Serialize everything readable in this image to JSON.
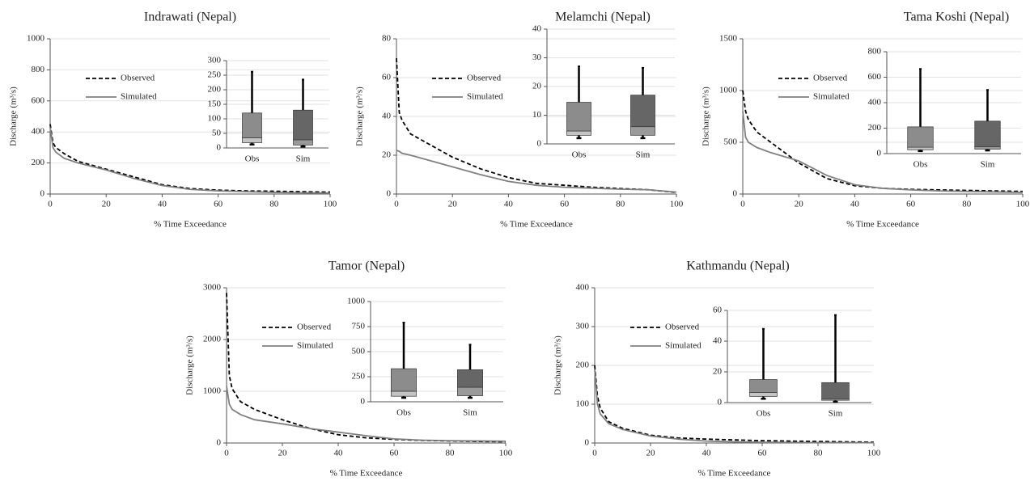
{
  "chart_data": [
    {
      "type": "line",
      "title": "Indrawati (Nepal)",
      "x_label": "% Time Exceedance",
      "y_label": "Discharge (m³/s)",
      "x": [
        0,
        1,
        2,
        5,
        10,
        20,
        30,
        40,
        50,
        60,
        70,
        80,
        90,
        100
      ],
      "xlim": [
        0,
        100
      ],
      "xticks": [
        0,
        20,
        40,
        60,
        80,
        100
      ],
      "ylim": [
        0,
        1000
      ],
      "yticks": [
        0,
        200,
        400,
        600,
        800,
        1000
      ],
      "grid": true,
      "series": [
        {
          "name": "Observed",
          "color": "#000000",
          "dashed": true,
          "values": [
            450,
            330,
            300,
            260,
            210,
            160,
            110,
            60,
            35,
            25,
            20,
            18,
            15,
            12
          ]
        },
        {
          "name": "Simulated",
          "color": "#808080",
          "dashed": false,
          "values": [
            430,
            300,
            270,
            230,
            200,
            155,
            100,
            55,
            30,
            20,
            15,
            10,
            8,
            6
          ]
        }
      ],
      "inset": {
        "type": "box",
        "categories": [
          "Obs",
          "Sim"
        ],
        "ylim": [
          0,
          300
        ],
        "yticks": [
          0,
          50,
          100,
          150,
          200,
          250,
          300
        ],
        "grid": true,
        "boxes": [
          {
            "min": 12,
            "q1": 18,
            "median": 35,
            "q3": 120,
            "max": 262,
            "color": "#8c8c8c",
            "lower_color": "#c4c4c4"
          },
          {
            "min": 5,
            "q1": 10,
            "median": 28,
            "q3": 130,
            "max": 235,
            "color": "#666666",
            "lower_color": "#9a9a9a"
          }
        ]
      }
    },
    {
      "type": "line",
      "title": "Melamchi (Nepal)",
      "x_label": "% Time Exceedance",
      "y_label": "Discharge (m³/s)",
      "x": [
        0,
        1,
        2,
        5,
        10,
        20,
        30,
        40,
        50,
        60,
        70,
        80,
        90,
        100
      ],
      "xlim": [
        0,
        100
      ],
      "xticks": [
        0,
        20,
        40,
        60,
        80,
        100
      ],
      "ylim": [
        0,
        80
      ],
      "yticks": [
        0,
        20,
        40,
        60,
        80
      ],
      "grid": true,
      "series": [
        {
          "name": "Observed",
          "color": "#000000",
          "dashed": true,
          "values": [
            70,
            42,
            38,
            31,
            27,
            19,
            13,
            8.5,
            5.5,
            4.5,
            3.5,
            2.8,
            2.2,
            0.8
          ]
        },
        {
          "name": "Simulated",
          "color": "#808080",
          "dashed": false,
          "values": [
            22.5,
            22,
            21,
            20,
            18,
            14,
            10,
            6.5,
            4.5,
            3.5,
            3,
            2.5,
            2.2,
            1
          ]
        }
      ],
      "inset": {
        "type": "box",
        "categories": [
          "Obs",
          "Sim"
        ],
        "ylim": [
          0,
          40
        ],
        "yticks": [
          0,
          10,
          20,
          30,
          40
        ],
        "grid": true,
        "boxes": [
          {
            "min": 2,
            "q1": 3,
            "median": 4.5,
            "q3": 14.5,
            "max": 27,
            "color": "#8c8c8c",
            "lower_color": "#c4c4c4"
          },
          {
            "min": 2,
            "q1": 3,
            "median": 6,
            "q3": 17,
            "max": 26.5,
            "color": "#666666",
            "lower_color": "#9a9a9a"
          }
        ]
      }
    },
    {
      "type": "line",
      "title": "Tama Koshi (Nepal)",
      "x_label": "% Time Exceedance",
      "y_label": "Discharge (m³/s)",
      "x": [
        0,
        1,
        2,
        5,
        10,
        20,
        30,
        40,
        50,
        60,
        70,
        80,
        90,
        100
      ],
      "xlim": [
        0,
        100
      ],
      "xticks": [
        0,
        20,
        40,
        60,
        80,
        100
      ],
      "ylim": [
        0,
        1500
      ],
      "yticks": [
        0,
        500,
        1000,
        1500
      ],
      "grid": true,
      "series": [
        {
          "name": "Observed",
          "color": "#000000",
          "dashed": true,
          "values": [
            1000,
            800,
            720,
            600,
            500,
            300,
            150,
            80,
            55,
            45,
            40,
            35,
            30,
            25
          ]
        },
        {
          "name": "Simulated",
          "color": "#808080",
          "dashed": false,
          "values": [
            800,
            550,
            500,
            450,
            400,
            320,
            180,
            90,
            55,
            40,
            30,
            25,
            20,
            15
          ]
        }
      ],
      "inset": {
        "type": "box",
        "categories": [
          "Obs",
          "Sim"
        ],
        "ylim": [
          0,
          800
        ],
        "yticks": [
          0,
          200,
          400,
          600,
          800
        ],
        "grid": true,
        "boxes": [
          {
            "min": 20,
            "q1": 30,
            "median": 50,
            "q3": 210,
            "max": 665,
            "color": "#8c8c8c",
            "lower_color": "#c4c4c4"
          },
          {
            "min": 25,
            "q1": 35,
            "median": 55,
            "q3": 255,
            "max": 500,
            "color": "#666666",
            "lower_color": "#9a9a9a"
          }
        ]
      }
    },
    {
      "type": "line",
      "title": "Tamor (Nepal)",
      "x_label": "% Time Exceedance",
      "y_label": "Discharge (m³/s)",
      "x": [
        0,
        1,
        2,
        5,
        10,
        20,
        30,
        40,
        50,
        60,
        70,
        80,
        90,
        100
      ],
      "xlim": [
        0,
        100
      ],
      "xticks": [
        0,
        20,
        40,
        60,
        80,
        100
      ],
      "ylim": [
        0,
        3000
      ],
      "yticks": [
        0,
        1000,
        2000,
        3000
      ],
      "grid": true,
      "series": [
        {
          "name": "Observed",
          "color": "#000000",
          "dashed": true,
          "values": [
            2900,
            1300,
            1050,
            800,
            650,
            450,
            280,
            160,
            100,
            70,
            50,
            40,
            30,
            25
          ]
        },
        {
          "name": "Simulated",
          "color": "#808080",
          "dashed": false,
          "values": [
            1100,
            750,
            650,
            550,
            450,
            370,
            280,
            210,
            140,
            80,
            55,
            45,
            40,
            35
          ]
        }
      ],
      "inset": {
        "type": "box",
        "categories": [
          "Obs",
          "Sim"
        ],
        "ylim": [
          0,
          1000
        ],
        "yticks": [
          0,
          250,
          500,
          750,
          1000
        ],
        "grid": true,
        "boxes": [
          {
            "min": 40,
            "q1": 55,
            "median": 105,
            "q3": 330,
            "max": 790,
            "color": "#8c8c8c",
            "lower_color": "#c4c4c4"
          },
          {
            "min": 40,
            "q1": 60,
            "median": 145,
            "q3": 320,
            "max": 570,
            "color": "#666666",
            "lower_color": "#9a9a9a"
          }
        ]
      }
    },
    {
      "type": "line",
      "title": "Kathmandu (Nepal)",
      "x_label": "% Time Exceedance",
      "y_label": "Discharge (m³/s)",
      "x": [
        0,
        1,
        2,
        5,
        10,
        20,
        30,
        40,
        50,
        60,
        70,
        80,
        90,
        100
      ],
      "xlim": [
        0,
        100
      ],
      "xticks": [
        0,
        20,
        40,
        60,
        80,
        100
      ],
      "ylim": [
        0,
        400
      ],
      "yticks": [
        0,
        100,
        200,
        300,
        400
      ],
      "grid": true,
      "series": [
        {
          "name": "Observed",
          "color": "#000000",
          "dashed": true,
          "values": [
            200,
            120,
            90,
            55,
            38,
            20,
            13,
            10,
            8,
            6,
            5,
            4,
            3,
            2
          ]
        },
        {
          "name": "Simulated",
          "color": "#808080",
          "dashed": false,
          "values": [
            190,
            100,
            75,
            50,
            35,
            18,
            10,
            5,
            3,
            2,
            1.5,
            1,
            1,
            0.5
          ]
        }
      ],
      "inset": {
        "type": "box",
        "categories": [
          "Obs",
          "Sim"
        ],
        "ylim": [
          0,
          60
        ],
        "yticks": [
          0,
          20,
          40,
          60
        ],
        "grid": true,
        "boxes": [
          {
            "min": 2.5,
            "q1": 4,
            "median": 6.5,
            "q3": 15,
            "max": 48,
            "color": "#8c8c8c",
            "lower_color": "#c4c4c4"
          },
          {
            "min": 0.5,
            "q1": 1.5,
            "median": 2.5,
            "q3": 13,
            "max": 57,
            "color": "#666666",
            "lower_color": "#9a9a9a"
          }
        ]
      }
    }
  ]
}
